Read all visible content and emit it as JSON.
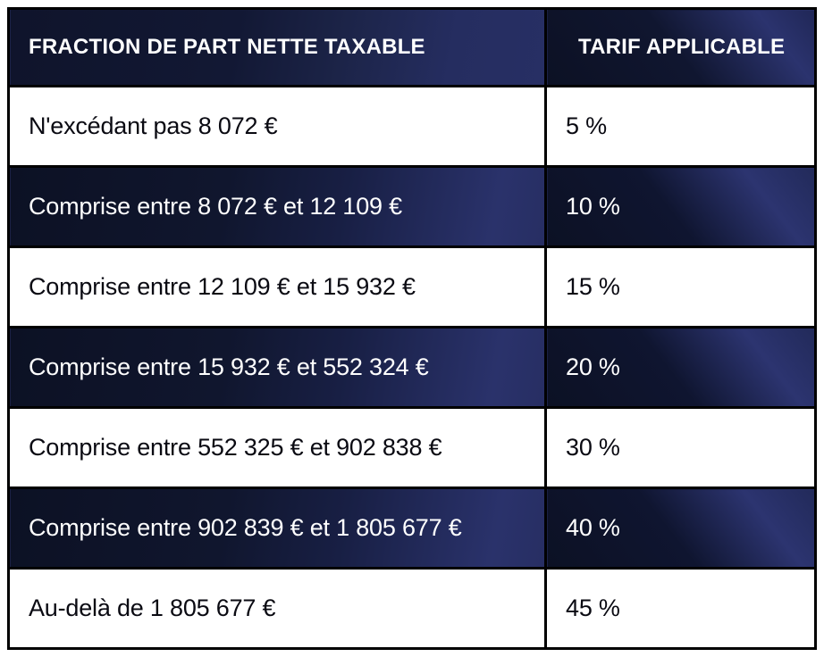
{
  "table": {
    "headers": {
      "fraction": "FRACTION DE PART NETTE TAXABLE",
      "tarif": "TARIF APPLICABLE"
    },
    "rows": [
      {
        "fraction": "N'excédant pas 8 072 €",
        "tarif": "5 %"
      },
      {
        "fraction": "Comprise entre 8 072 € et 12 109 €",
        "tarif": "10 %"
      },
      {
        "fraction": "Comprise entre 12 109 € et 15 932 €",
        "tarif": "15 %"
      },
      {
        "fraction": "Comprise entre 15 932 € et 552 324 €",
        "tarif": "20 %"
      },
      {
        "fraction": "Comprise entre 552 325 € et 902 838 €",
        "tarif": "30 %"
      },
      {
        "fraction": "Comprise entre 902 839 € et 1 805 677 €",
        "tarif": "40 %"
      },
      {
        "fraction": "Au-delà de 1 805 677 €",
        "tarif": "45 %"
      }
    ],
    "colors": {
      "border": "#000000",
      "dark_navy": "#0c1124",
      "royal_blue": "#2a326b",
      "row_light_bg": "#ffffff",
      "header_text": "#ffffff",
      "row_text_dark": "#0a0a12",
      "row_text_light": "#ffffff"
    }
  }
}
